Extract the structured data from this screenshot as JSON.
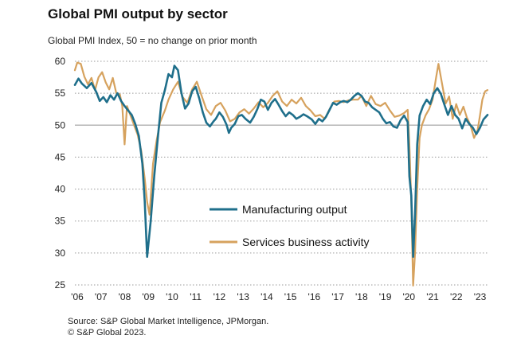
{
  "title": "Global PMI output by sector",
  "subtitle": "Global PMI Index, 50 = no change on prior month",
  "source_line1": "Source: S&P Global Market Intelligence, JPMorgan.",
  "source_line2": "© S&P Global 2023.",
  "colors": {
    "manufacturing": "#1f6f8b",
    "services": "#d6a25e",
    "grid": "#9a9a9a",
    "baseline": "#b5b5b5"
  },
  "chart_data": {
    "type": "line",
    "title": "Global PMI output by sector",
    "ylabel": "Global PMI Index, 50 = no change on prior month",
    "ylim": [
      25,
      60
    ],
    "xlim": [
      2006.0,
      2023.42
    ],
    "y_ticks": [
      25,
      30,
      35,
      40,
      45,
      50,
      55,
      60
    ],
    "x_ticks": [
      {
        "label": "'06",
        "value": 2006.0
      },
      {
        "label": "'07",
        "value": 2007.0
      },
      {
        "label": "'08",
        "value": 2008.0
      },
      {
        "label": "'09",
        "value": 2009.0
      },
      {
        "label": "'10",
        "value": 2010.0
      },
      {
        "label": "'11",
        "value": 2011.0
      },
      {
        "label": "'12",
        "value": 2012.0
      },
      {
        "label": "'13",
        "value": 2013.0
      },
      {
        "label": "'14",
        "value": 2014.0
      },
      {
        "label": "'15",
        "value": 2015.0
      },
      {
        "label": "'16",
        "value": 2016.0
      },
      {
        "label": "'17",
        "value": 2017.0
      },
      {
        "label": "'18",
        "value": 2018.0
      },
      {
        "label": "'19",
        "value": 2019.0
      },
      {
        "label": "'20",
        "value": 2020.0
      },
      {
        "label": "'21",
        "value": 2021.0
      },
      {
        "label": "'22",
        "value": 2022.0
      },
      {
        "label": "'23",
        "value": 2023.0
      }
    ],
    "grid": "horizontal dotted",
    "legend": "center",
    "series": [
      {
        "name": "Manufacturing output",
        "points": [
          [
            2006.0,
            56.3
          ],
          [
            2006.15,
            57.3
          ],
          [
            2006.3,
            56.5
          ],
          [
            2006.5,
            55.8
          ],
          [
            2006.7,
            56.6
          ],
          [
            2006.9,
            55.2
          ],
          [
            2007.05,
            53.8
          ],
          [
            2007.2,
            54.4
          ],
          [
            2007.35,
            53.6
          ],
          [
            2007.5,
            54.7
          ],
          [
            2007.65,
            54.0
          ],
          [
            2007.8,
            55.0
          ],
          [
            2007.95,
            53.8
          ],
          [
            2008.1,
            53.0
          ],
          [
            2008.25,
            52.3
          ],
          [
            2008.4,
            51.6
          ],
          [
            2008.55,
            50.2
          ],
          [
            2008.7,
            48.3
          ],
          [
            2008.85,
            44.0
          ],
          [
            2008.95,
            38.0
          ],
          [
            2009.05,
            29.4
          ],
          [
            2009.2,
            35.0
          ],
          [
            2009.35,
            42.0
          ],
          [
            2009.5,
            48.0
          ],
          [
            2009.65,
            53.5
          ],
          [
            2009.8,
            55.5
          ],
          [
            2009.95,
            58.0
          ],
          [
            2010.1,
            57.5
          ],
          [
            2010.2,
            59.3
          ],
          [
            2010.35,
            58.6
          ],
          [
            2010.5,
            55.0
          ],
          [
            2010.65,
            52.6
          ],
          [
            2010.8,
            53.4
          ],
          [
            2010.95,
            55.3
          ],
          [
            2011.1,
            56.0
          ],
          [
            2011.25,
            54.2
          ],
          [
            2011.4,
            52.0
          ],
          [
            2011.55,
            50.4
          ],
          [
            2011.7,
            49.8
          ],
          [
            2011.85,
            50.6
          ],
          [
            2011.95,
            51.0
          ],
          [
            2012.1,
            52.0
          ],
          [
            2012.25,
            51.3
          ],
          [
            2012.4,
            50.1
          ],
          [
            2012.5,
            48.8
          ],
          [
            2012.6,
            49.6
          ],
          [
            2012.75,
            50.2
          ],
          [
            2012.9,
            51.4
          ],
          [
            2013.05,
            51.6
          ],
          [
            2013.2,
            51.0
          ],
          [
            2013.4,
            50.4
          ],
          [
            2013.55,
            51.3
          ],
          [
            2013.7,
            52.5
          ],
          [
            2013.85,
            54.0
          ],
          [
            2014.0,
            53.7
          ],
          [
            2014.15,
            52.4
          ],
          [
            2014.3,
            53.5
          ],
          [
            2014.45,
            54.1
          ],
          [
            2014.6,
            53.2
          ],
          [
            2014.75,
            52.2
          ],
          [
            2014.9,
            51.4
          ],
          [
            2015.05,
            52.0
          ],
          [
            2015.2,
            51.6
          ],
          [
            2015.35,
            51.0
          ],
          [
            2015.5,
            51.3
          ],
          [
            2015.65,
            51.7
          ],
          [
            2015.8,
            51.4
          ],
          [
            2016.0,
            50.9
          ],
          [
            2016.15,
            50.2
          ],
          [
            2016.3,
            51.0
          ],
          [
            2016.45,
            50.6
          ],
          [
            2016.6,
            51.3
          ],
          [
            2016.75,
            52.4
          ],
          [
            2016.9,
            53.5
          ],
          [
            2017.05,
            53.2
          ],
          [
            2017.2,
            53.6
          ],
          [
            2017.35,
            53.8
          ],
          [
            2017.5,
            53.6
          ],
          [
            2017.65,
            54.0
          ],
          [
            2017.8,
            54.6
          ],
          [
            2017.95,
            55.0
          ],
          [
            2018.1,
            54.6
          ],
          [
            2018.25,
            53.7
          ],
          [
            2018.4,
            53.5
          ],
          [
            2018.55,
            52.8
          ],
          [
            2018.7,
            52.4
          ],
          [
            2018.85,
            52.0
          ],
          [
            2019.0,
            51.0
          ],
          [
            2019.15,
            50.3
          ],
          [
            2019.3,
            50.5
          ],
          [
            2019.45,
            49.8
          ],
          [
            2019.6,
            49.6
          ],
          [
            2019.75,
            50.8
          ],
          [
            2019.9,
            51.5
          ],
          [
            2020.05,
            50.5
          ],
          [
            2020.12,
            42.0
          ],
          [
            2020.2,
            39.0
          ],
          [
            2020.28,
            29.4
          ],
          [
            2020.36,
            36.0
          ],
          [
            2020.45,
            47.0
          ],
          [
            2020.55,
            51.5
          ],
          [
            2020.7,
            53.0
          ],
          [
            2020.85,
            54.0
          ],
          [
            2021.0,
            53.3
          ],
          [
            2021.15,
            55.0
          ],
          [
            2021.3,
            55.8
          ],
          [
            2021.45,
            54.9
          ],
          [
            2021.6,
            53.2
          ],
          [
            2021.75,
            51.6
          ],
          [
            2021.9,
            53.0
          ],
          [
            2022.05,
            51.6
          ],
          [
            2022.2,
            51.0
          ],
          [
            2022.35,
            49.5
          ],
          [
            2022.5,
            51.0
          ],
          [
            2022.65,
            50.2
          ],
          [
            2022.8,
            49.6
          ],
          [
            2022.95,
            48.6
          ],
          [
            2023.1,
            49.6
          ],
          [
            2023.25,
            50.9
          ],
          [
            2023.42,
            51.6
          ]
        ]
      },
      {
        "name": "Services business activity",
        "points": [
          [
            2006.0,
            58.6
          ],
          [
            2006.1,
            59.8
          ],
          [
            2006.25,
            59.6
          ],
          [
            2006.4,
            57.6
          ],
          [
            2006.55,
            56.4
          ],
          [
            2006.7,
            57.4
          ],
          [
            2006.85,
            55.5
          ],
          [
            2007.0,
            57.5
          ],
          [
            2007.15,
            58.3
          ],
          [
            2007.3,
            56.7
          ],
          [
            2007.45,
            55.6
          ],
          [
            2007.6,
            57.4
          ],
          [
            2007.75,
            55.0
          ],
          [
            2007.9,
            54.8
          ],
          [
            2008.0,
            53.0
          ],
          [
            2008.1,
            47.0
          ],
          [
            2008.2,
            53.0
          ],
          [
            2008.35,
            51.5
          ],
          [
            2008.5,
            50.0
          ],
          [
            2008.65,
            48.5
          ],
          [
            2008.8,
            46.0
          ],
          [
            2008.95,
            41.6
          ],
          [
            2009.05,
            38.0
          ],
          [
            2009.15,
            36.0
          ],
          [
            2009.3,
            44.0
          ],
          [
            2009.45,
            47.6
          ],
          [
            2009.6,
            50.5
          ],
          [
            2009.8,
            52.3
          ],
          [
            2009.95,
            54.0
          ],
          [
            2010.15,
            55.6
          ],
          [
            2010.35,
            56.8
          ],
          [
            2010.55,
            54.4
          ],
          [
            2010.75,
            53.5
          ],
          [
            2010.95,
            55.6
          ],
          [
            2011.15,
            56.8
          ],
          [
            2011.35,
            54.6
          ],
          [
            2011.55,
            52.5
          ],
          [
            2011.75,
            51.6
          ],
          [
            2011.95,
            53.0
          ],
          [
            2012.15,
            53.5
          ],
          [
            2012.35,
            52.3
          ],
          [
            2012.55,
            50.6
          ],
          [
            2012.75,
            51.0
          ],
          [
            2012.95,
            52.0
          ],
          [
            2013.15,
            52.5
          ],
          [
            2013.35,
            51.8
          ],
          [
            2013.55,
            52.6
          ],
          [
            2013.75,
            53.6
          ],
          [
            2013.95,
            52.8
          ],
          [
            2014.15,
            53.5
          ],
          [
            2014.35,
            54.6
          ],
          [
            2014.55,
            55.3
          ],
          [
            2014.75,
            53.7
          ],
          [
            2014.95,
            53.0
          ],
          [
            2015.15,
            54.0
          ],
          [
            2015.35,
            53.4
          ],
          [
            2015.55,
            54.3
          ],
          [
            2015.75,
            53.0
          ],
          [
            2015.95,
            52.3
          ],
          [
            2016.15,
            51.4
          ],
          [
            2016.35,
            51.6
          ],
          [
            2016.55,
            51.0
          ],
          [
            2016.75,
            52.5
          ],
          [
            2016.95,
            53.7
          ],
          [
            2017.15,
            53.8
          ],
          [
            2017.35,
            53.6
          ],
          [
            2017.55,
            53.9
          ],
          [
            2017.75,
            54.0
          ],
          [
            2017.95,
            54.0
          ],
          [
            2018.1,
            54.6
          ],
          [
            2018.3,
            53.0
          ],
          [
            2018.5,
            54.6
          ],
          [
            2018.7,
            53.3
          ],
          [
            2018.9,
            53.0
          ],
          [
            2019.1,
            53.5
          ],
          [
            2019.3,
            52.3
          ],
          [
            2019.5,
            51.3
          ],
          [
            2019.7,
            51.5
          ],
          [
            2019.9,
            51.9
          ],
          [
            2020.05,
            52.4
          ],
          [
            2020.12,
            47.0
          ],
          [
            2020.2,
            38.0
          ],
          [
            2020.28,
            24.9
          ],
          [
            2020.36,
            30.0
          ],
          [
            2020.45,
            40.0
          ],
          [
            2020.55,
            48.0
          ],
          [
            2020.65,
            50.0
          ],
          [
            2020.8,
            51.5
          ],
          [
            2020.95,
            52.5
          ],
          [
            2021.1,
            54.0
          ],
          [
            2021.25,
            57.5
          ],
          [
            2021.35,
            59.6
          ],
          [
            2021.5,
            56.5
          ],
          [
            2021.65,
            53.4
          ],
          [
            2021.8,
            54.5
          ],
          [
            2021.95,
            51.0
          ],
          [
            2022.1,
            53.3
          ],
          [
            2022.25,
            51.6
          ],
          [
            2022.4,
            52.9
          ],
          [
            2022.55,
            51.2
          ],
          [
            2022.7,
            50.0
          ],
          [
            2022.85,
            48.0
          ],
          [
            2023.0,
            49.2
          ],
          [
            2023.1,
            51.5
          ],
          [
            2023.2,
            54.0
          ],
          [
            2023.32,
            55.3
          ],
          [
            2023.42,
            55.5
          ]
        ]
      }
    ]
  }
}
